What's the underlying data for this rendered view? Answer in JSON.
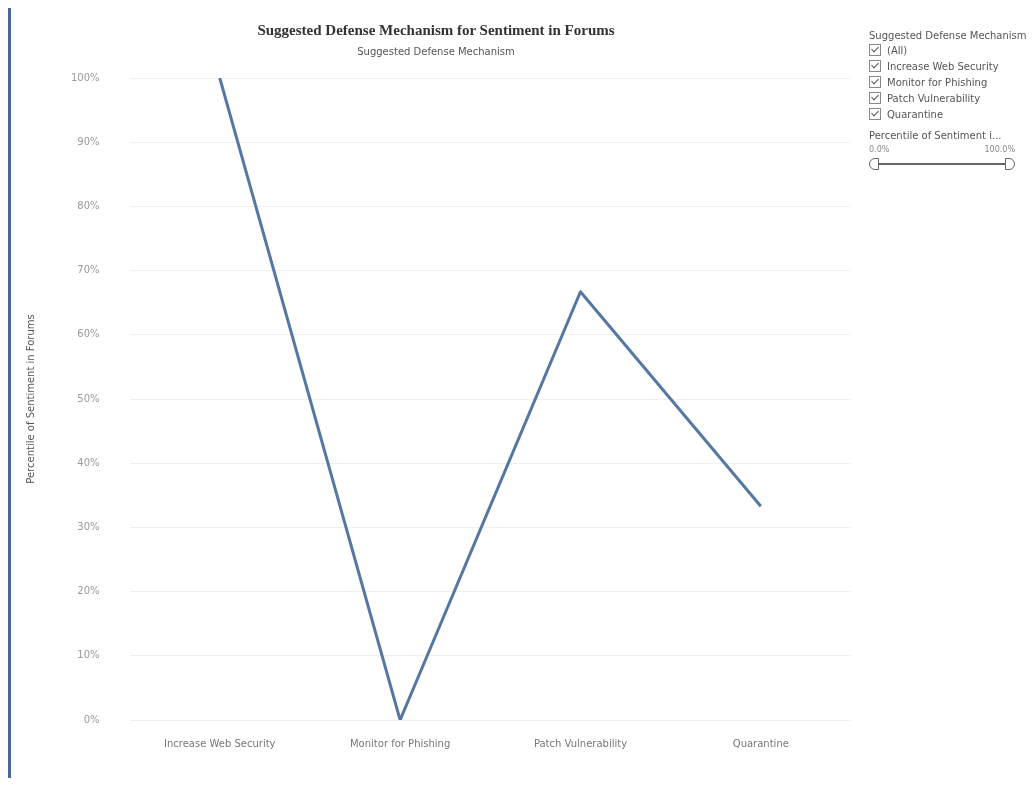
{
  "chart_data": {
    "type": "line",
    "title": "Suggested Defense Mechanism for Sentiment in Forums",
    "xlabel": "Suggested Defense Mechanism",
    "ylabel": "Percentile of Sentiment in Forums",
    "categories": [
      "Increase Web Security",
      "Monitor for Phishing",
      "Patch Vulnerability",
      "Quarantine"
    ],
    "series": [
      {
        "color": "#5577a3",
        "values": [
          100,
          0,
          66.7,
          33.3
        ]
      }
    ],
    "ylim": [
      0,
      100
    ],
    "yticks": [
      {
        "value": 0,
        "label": "0%"
      },
      {
        "value": 10,
        "label": "10%"
      },
      {
        "value": 20,
        "label": "20%"
      },
      {
        "value": 30,
        "label": "30%"
      },
      {
        "value": 40,
        "label": "40%"
      },
      {
        "value": 50,
        "label": "50%"
      },
      {
        "value": 60,
        "label": "60%"
      },
      {
        "value": 70,
        "label": "70%"
      },
      {
        "value": 80,
        "label": "80%"
      },
      {
        "value": 90,
        "label": "90%"
      },
      {
        "value": 100,
        "label": "100%"
      }
    ],
    "grid": "y",
    "marker": "none",
    "line_style": "solid",
    "legend": false,
    "annotations": [
      "Suggested Defense Mechanism",
      "(All)",
      "Increase Web Security",
      "Monitor for Phishing",
      "Patch Vulnerability",
      "Quarantine",
      "Percentile of Sentiment i...",
      "0.0%",
      "100.0%"
    ]
  }
}
